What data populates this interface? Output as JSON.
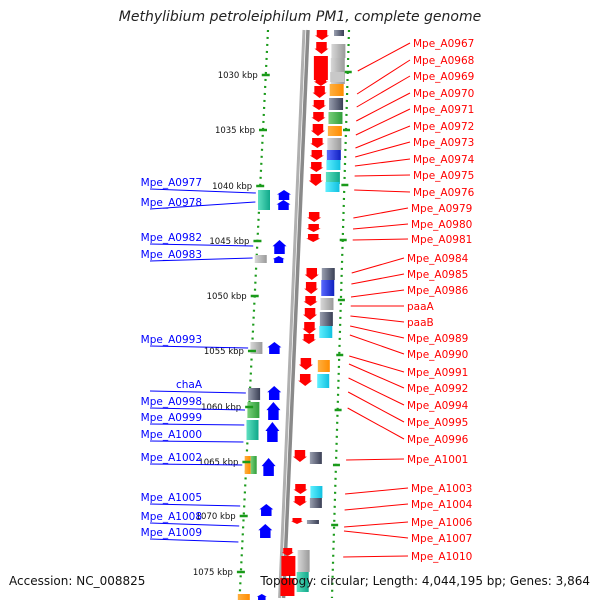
{
  "title": "Methylibium petroleiphilum PM1, complete genome",
  "footer": {
    "accession": "Accession: NC_008825",
    "summary": "Topology: circular; Length: 4,044,195 bp; Genes: 3,864"
  },
  "colors": {
    "forward_strand": "#ff0000",
    "reverse_strand": "#0000ff",
    "backbone": "#8a8a8a",
    "tick": "#1a9a1a"
  },
  "scale": {
    "unit": "kbp",
    "ticks": [
      "1030 kbp",
      "1035 kbp",
      "1040 kbp",
      "1045 kbp",
      "1050 kbp",
      "1055 kbp",
      "1060 kbp",
      "1065 kbp",
      "1070 kbp",
      "1075 kbp"
    ]
  },
  "labels_left": [
    "Mpe_A0977",
    "Mpe_A0978",
    "Mpe_A0982",
    "Mpe_A0983",
    "Mpe_A0993",
    "chaA",
    "Mpe_A0998",
    "Mpe_A0999",
    "Mpe_A1000",
    "Mpe_A1002",
    "Mpe_A1005",
    "Mpe_A1008",
    "Mpe_A1009"
  ],
  "labels_right": [
    "Mpe_A0967",
    "Mpe_A0968",
    "Mpe_A0969",
    "Mpe_A0970",
    "Mpe_A0971",
    "Mpe_A0972",
    "Mpe_A0973",
    "Mpe_A0974",
    "Mpe_A0975",
    "Mpe_A0976",
    "Mpe_A0979",
    "Mpe_A0980",
    "Mpe_A0981",
    "Mpe_A0984",
    "Mpe_A0985",
    "Mpe_A0986",
    "paaA",
    "paaB",
    "Mpe_A0989",
    "Mpe_A0990",
    "Mpe_A0991",
    "Mpe_A0992",
    "Mpe_A0994",
    "Mpe_A0995",
    "Mpe_A0996",
    "Mpe_A1001",
    "Mpe_A1003",
    "Mpe_A1004",
    "Mpe_A1006",
    "Mpe_A1007",
    "Mpe_A1010"
  ]
}
